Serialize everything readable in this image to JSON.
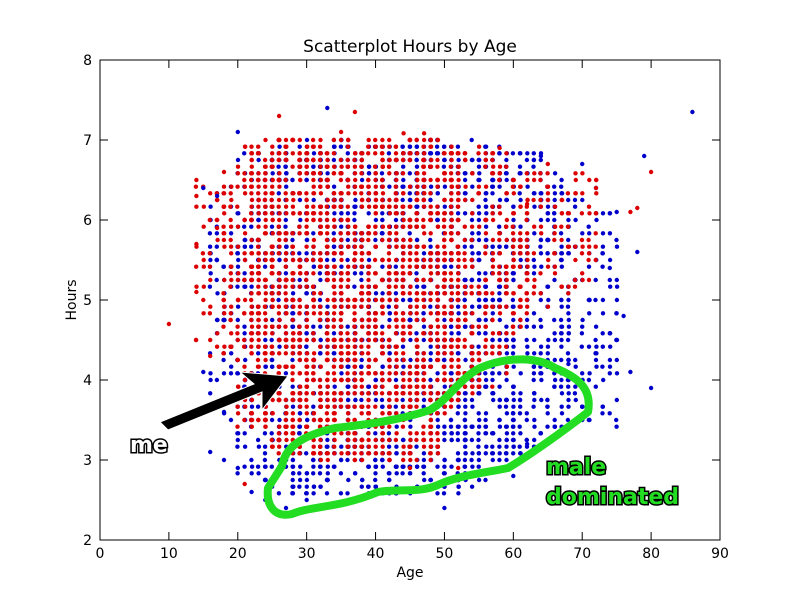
{
  "chart_data": {
    "type": "scatter",
    "title": "Scatterplot Hours by Age",
    "xlabel": "Age",
    "ylabel": "Hours",
    "xlim": [
      0,
      90
    ],
    "ylim": [
      2,
      8
    ],
    "xticks": [
      "0",
      "10",
      "20",
      "30",
      "40",
      "50",
      "60",
      "70",
      "80",
      "90"
    ],
    "yticks": [
      "2",
      "3",
      "4",
      "5",
      "6",
      "7",
      "8"
    ],
    "grid": false,
    "legend": "none",
    "series": [
      {
        "color": "#0000cc",
        "age_range": [
          14,
          86
        ],
        "hours_range": [
          2.4,
          7.4
        ],
        "points": [
          [
            15,
            6.4
          ],
          [
            15,
            4.1
          ],
          [
            16,
            3.1
          ],
          [
            17,
            6.3
          ],
          [
            18,
            3.0
          ],
          [
            18,
            3.6
          ],
          [
            20,
            2.9
          ],
          [
            20,
            7.1
          ],
          [
            22,
            2.6
          ],
          [
            24,
            2.5
          ],
          [
            25,
            2.4
          ],
          [
            27,
            2.4
          ],
          [
            30,
            2.5
          ],
          [
            33,
            7.4
          ],
          [
            40,
            2.6
          ],
          [
            50,
            2.4
          ],
          [
            60,
            2.8
          ],
          [
            62,
            3.2
          ],
          [
            64,
            6.8
          ],
          [
            66,
            3.5
          ],
          [
            68,
            4.2
          ],
          [
            70,
            3.9
          ],
          [
            70,
            6.7
          ],
          [
            72,
            6.4
          ],
          [
            73,
            5.0
          ],
          [
            74,
            5.4
          ],
          [
            75,
            6.1
          ],
          [
            76,
            4.8
          ],
          [
            77,
            4.1
          ],
          [
            78,
            5.6
          ],
          [
            79,
            6.8
          ],
          [
            80,
            3.9
          ],
          [
            86,
            7.35
          ]
        ]
      },
      {
        "color": "#dd0000",
        "age_range": [
          10,
          80
        ],
        "hours_range": [
          2.7,
          7.35
        ],
        "points": [
          [
            10,
            4.7
          ],
          [
            14,
            5.7
          ],
          [
            14,
            5.1
          ],
          [
            14,
            6.3
          ],
          [
            15,
            5.0
          ],
          [
            16,
            4.3
          ],
          [
            17,
            5.9
          ],
          [
            18,
            6.6
          ],
          [
            21,
            2.7
          ],
          [
            26,
            7.3
          ],
          [
            28,
            7.0
          ],
          [
            35,
            7.1
          ],
          [
            37,
            7.35
          ],
          [
            45,
            2.9
          ],
          [
            52,
            2.9
          ],
          [
            58,
            6.9
          ],
          [
            62,
            6.2
          ],
          [
            65,
            6.7
          ],
          [
            72,
            6.4
          ],
          [
            77,
            6.1
          ],
          [
            78,
            6.15
          ],
          [
            80,
            6.6
          ]
        ]
      }
    ],
    "annotations": [
      {
        "text": "me",
        "points_to": [
          27,
          4.0
        ]
      },
      {
        "text": "male",
        "region": "low hours, age 25–70"
      },
      {
        "text": "dominated",
        "region": "low hours, age 25–70"
      }
    ]
  }
}
